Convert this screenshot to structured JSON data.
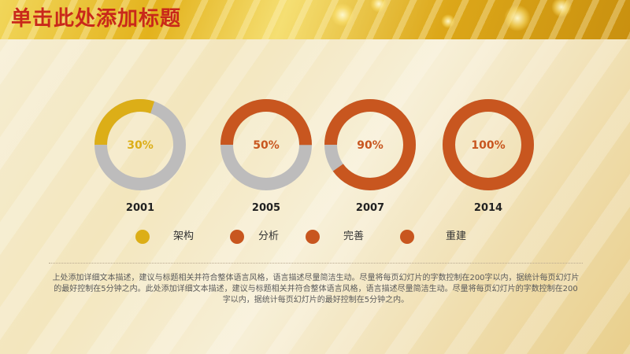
{
  "header": {
    "title": "单击此处添加标题"
  },
  "colors": {
    "gold": "#dcae17",
    "orange": "#c8561f",
    "track": "#bdbcbc",
    "title": "#c9281a"
  },
  "legend": [
    {
      "label": "架构",
      "color": "#dcae17"
    },
    {
      "label": "分析",
      "color": "#c8561f"
    },
    {
      "label": "完善",
      "color": "#c8561f"
    },
    {
      "label": "重建",
      "color": "#c8561f"
    }
  ],
  "chart_data": {
    "type": "donut",
    "categories": [
      "2001",
      "2005",
      "2007",
      "2014"
    ],
    "values": [
      30,
      50,
      90,
      100
    ],
    "value_labels": [
      "30%",
      "50%",
      "90%",
      "100%"
    ],
    "unit": "%",
    "colors": [
      "#dcae17",
      "#c8561f",
      "#c8561f",
      "#c8561f"
    ],
    "track_color": "#bdbcbc",
    "max": 100
  },
  "description": "上处添加详细文本描述，建议与标题相关并符合整体语言风格，语言描述尽量简洁生动。尽量将每页幻灯片的字数控制在200字以内，据统计每页幻灯片的最好控制在5分钟之内。此处添加详细文本描述，建议与标题相关并符合整体语言风格，语言描述尽量简洁生动。尽量将每页幻灯片的字数控制在200字以内，据统计每页幻灯片的最好控制在5分钟之内。"
}
